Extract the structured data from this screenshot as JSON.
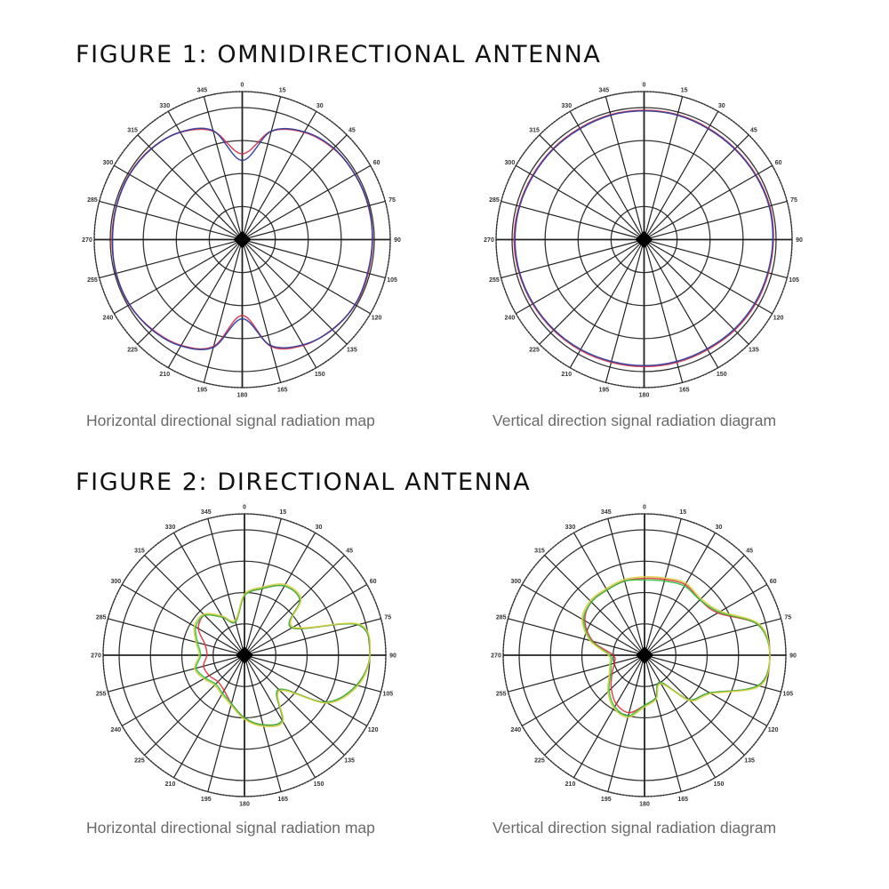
{
  "figure1": {
    "title": "FIGURE 1: OMNIDIRECTIONAL ANTENNA",
    "left_caption": "Horizontal directional signal radiation map",
    "right_caption": "Vertical direction signal radiation diagram"
  },
  "figure2": {
    "title": "FIGURE 2: DIRECTIONAL ANTENNA",
    "left_caption": "Horizontal directional signal radiation map",
    "right_caption": "Vertical direction signal radiation diagram"
  },
  "chart_data": [
    {
      "type": "polar-line",
      "figure": "figure1",
      "panel": "left",
      "angle_unit": "deg",
      "angles": [
        0,
        15,
        30,
        45,
        60,
        75,
        90,
        105,
        120,
        135,
        150,
        165,
        180,
        195,
        210,
        225,
        240,
        255,
        270,
        285,
        300,
        315,
        330,
        345
      ],
      "angle_tick_labels": [
        "0",
        "15",
        "30",
        "45",
        "60",
        "75",
        "90",
        "105",
        "120",
        "135",
        "150",
        "165",
        "180",
        "195",
        "210",
        "225",
        "240",
        "255",
        "270",
        "285",
        "300",
        "315",
        "330",
        "345"
      ],
      "rlim": [
        -40,
        0
      ],
      "r_rings": [
        -30,
        -20,
        -10,
        0
      ],
      "grid": true,
      "series": [
        {
          "color": "#d0304a",
          "values": [
            -14,
            -6,
            -2.5,
            -1,
            -0.5,
            -0.5,
            -0.5,
            -0.5,
            -0.5,
            -1.5,
            -3,
            -6.5,
            -17,
            -6.5,
            -3,
            -1.5,
            -0.5,
            -0.5,
            -0.5,
            -0.5,
            -0.5,
            -1,
            -2.5,
            -6
          ]
        },
        {
          "color": "#2a3a9a",
          "values": [
            -16,
            -6,
            -2.3,
            -0.8,
            -0.6,
            -0.4,
            -0.6,
            -0.7,
            -0.6,
            -1.4,
            -3.2,
            -6.8,
            -16,
            -6.2,
            -2.8,
            -1.3,
            -0.6,
            -0.4,
            -0.7,
            -0.6,
            -0.6,
            -1.1,
            -2.4,
            -5.8
          ]
        }
      ]
    },
    {
      "type": "polar-line",
      "figure": "figure1",
      "panel": "right",
      "angle_unit": "deg",
      "angles": [
        0,
        15,
        30,
        45,
        60,
        75,
        90,
        105,
        120,
        135,
        150,
        165,
        180,
        195,
        210,
        225,
        240,
        255,
        270,
        285,
        300,
        315,
        330,
        345
      ],
      "angle_tick_labels": [
        "0",
        "15",
        "30",
        "45",
        "60",
        "75",
        "90",
        "105",
        "120",
        "135",
        "150",
        "165",
        "180",
        "195",
        "210",
        "225",
        "240",
        "255",
        "270",
        "285",
        "300",
        "315",
        "330",
        "345"
      ],
      "rlim": [
        -40,
        0
      ],
      "r_rings": [
        -30,
        -20,
        -10,
        0
      ],
      "grid": true,
      "series": [
        {
          "color": "#d0304a",
          "values": [
            -0.8,
            -0.8,
            -1,
            -1,
            -0.8,
            -0.6,
            -0.8,
            -1,
            -1,
            -1.2,
            -1.5,
            -1.5,
            -1.5,
            -1.5,
            -1.3,
            -1.2,
            -1,
            -0.8,
            -0.6,
            -0.8,
            -1,
            -1,
            -1,
            -0.8
          ]
        },
        {
          "color": "#2a3a9a",
          "values": [
            -1,
            -1,
            -1.2,
            -1.2,
            -1,
            -0.8,
            -1,
            -1.2,
            -1.3,
            -1.5,
            -1.8,
            -1.8,
            -1.8,
            -1.8,
            -1.6,
            -1.4,
            -1.2,
            -1,
            -0.9,
            -1,
            -1.2,
            -1.2,
            -1.2,
            -1
          ]
        }
      ]
    },
    {
      "type": "polar-line",
      "figure": "figure2",
      "panel": "left",
      "angle_unit": "deg",
      "angles": [
        0,
        15,
        30,
        45,
        60,
        75,
        90,
        105,
        120,
        135,
        150,
        165,
        180,
        195,
        210,
        225,
        240,
        255,
        270,
        285,
        300,
        315,
        330,
        345
      ],
      "angle_tick_labels": [
        "0",
        "15",
        "30",
        "45",
        "60",
        "75",
        "90",
        "105",
        "120",
        "135",
        "150",
        "165",
        "180",
        "195",
        "210",
        "225",
        "240",
        "255",
        "270",
        "285",
        "300",
        "315",
        "330",
        "345"
      ],
      "rlim": [
        -40,
        0
      ],
      "r_rings": [
        -30,
        -20,
        -10,
        0
      ],
      "grid": true,
      "series": [
        {
          "color": "#e0303a",
          "values": [
            -21,
            -18,
            -14.5,
            -15,
            -22.5,
            -2.5,
            0,
            -3,
            -10,
            -24.5,
            -16,
            -17,
            -20,
            -24,
            -27,
            -28,
            -27,
            -26.5,
            -28,
            -27,
            -23,
            -22,
            -26,
            -29
          ]
        },
        {
          "color": "#30c040",
          "values": [
            -21,
            -18,
            -14.5,
            -15,
            -22.5,
            -2.5,
            0,
            -3,
            -10,
            -24.5,
            -16,
            -17,
            -20,
            -24,
            -26,
            -27,
            -25.5,
            -24,
            -26,
            -24.5,
            -22,
            -22,
            -26,
            -29
          ]
        },
        {
          "color": "#d8d040",
          "values": [
            -20.5,
            -17.5,
            -14,
            -14.5,
            -22,
            -2,
            0,
            -2.5,
            -9.5,
            -24,
            -15.5,
            -16.5,
            -19.5,
            -23.5,
            -25.5,
            -26.5,
            -25,
            -23.5,
            -25.5,
            -24,
            -21.5,
            -21.5,
            -25.5,
            -28.5
          ]
        }
      ]
    },
    {
      "type": "polar-line",
      "figure": "figure2",
      "panel": "right",
      "angle_unit": "deg",
      "angles": [
        0,
        15,
        30,
        45,
        60,
        75,
        90,
        105,
        120,
        135,
        150,
        165,
        180,
        195,
        210,
        225,
        240,
        255,
        270,
        285,
        300,
        315,
        330,
        345
      ],
      "angle_tick_labels": [
        "0",
        "15",
        "30",
        "45",
        "60",
        "75",
        "90",
        "105",
        "120",
        "135",
        "150",
        "165",
        "180",
        "195",
        "210",
        "225",
        "240",
        "255",
        "270",
        "285",
        "300",
        "315",
        "330",
        "345"
      ],
      "rlim": [
        -40,
        0
      ],
      "r_rings": [
        -30,
        -20,
        -10,
        0
      ],
      "grid": true,
      "series": [
        {
          "color": "#e0303a",
          "values": [
            -15.5,
            -15,
            -14,
            -15,
            -13,
            -2.5,
            0,
            -2.5,
            -16,
            -20,
            -30,
            -26,
            -24,
            -21,
            -22,
            -25,
            -28,
            -30,
            -30,
            -23,
            -18,
            -16,
            -16,
            -15.5
          ]
        },
        {
          "color": "#30c040",
          "values": [
            -16,
            -15.5,
            -14.5,
            -15,
            -12.5,
            -2.5,
            0,
            -2.5,
            -16,
            -20,
            -30,
            -26,
            -24,
            -20,
            -21,
            -24,
            -27.5,
            -29,
            -29,
            -22.5,
            -17.5,
            -16,
            -16,
            -15.5
          ]
        },
        {
          "color": "#d8d040",
          "values": [
            -15,
            -14.5,
            -13.5,
            -14.5,
            -12,
            -2,
            0,
            -2,
            -15.5,
            -19.5,
            -29.5,
            -25.5,
            -23.5,
            -19.5,
            -20.5,
            -23.5,
            -27,
            -28.5,
            -28.5,
            -22,
            -17,
            -15.5,
            -15.5,
            -15
          ]
        }
      ]
    }
  ]
}
